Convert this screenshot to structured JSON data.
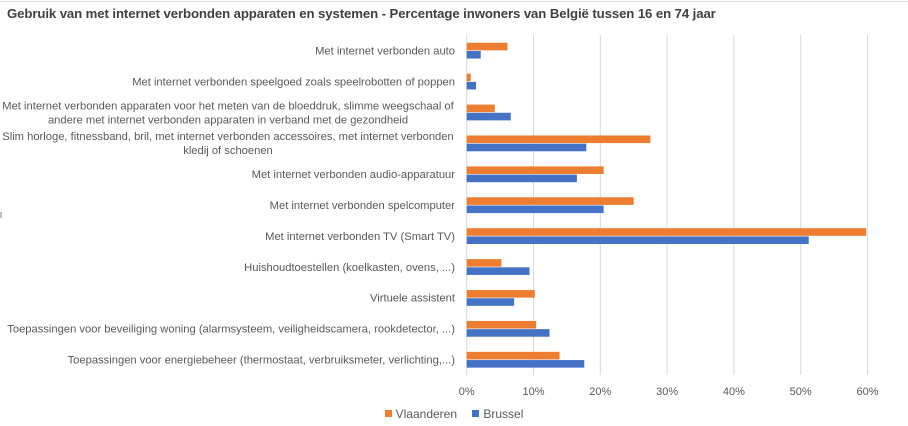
{
  "chart_data": {
    "type": "bar",
    "orientation": "horizontal",
    "title": "Gebruik van met internet verbonden apparaten en systemen - Percentage inwoners van België tussen 16 en 74 jaar",
    "xlabel": "",
    "ylabel": "",
    "xlim": [
      0,
      60
    ],
    "x_ticks": [
      "0%",
      "10%",
      "20%",
      "30%",
      "40%",
      "50%",
      "60%"
    ],
    "x_tick_values": [
      0,
      10,
      20,
      30,
      40,
      50,
      60
    ],
    "grid": "vertical",
    "legend_position": "bottom",
    "categories": [
      [
        "Met internet verbonden auto"
      ],
      [
        "Met internet verbonden speelgoed zoals speelrobotten of poppen"
      ],
      [
        "Met internet verbonden apparaten voor het meten van de bloeddruk, slimme weegschaal of",
        "andere met internet verbonden apparaten in verband met de gezondheid"
      ],
      [
        "Slim horloge, fitnessband, bril, met internet verbonden accessoires, met internet verbonden",
        "kledij of schoenen"
      ],
      [
        "Met internet verbonden audio-apparatuur"
      ],
      [
        "Met internet verbonden spelcomputer"
      ],
      [
        "Met internet verbonden TV (Smart TV)"
      ],
      [
        "Huishoudtoestellen (koelkasten, ovens, ...)"
      ],
      [
        "Virtuele assistent"
      ],
      [
        "Toepassingen voor beveiliging woning (alarmsysteem, veiligheidscamera, rookdetector, ...)"
      ],
      [
        "Toepassingen voor energiebeheer (thermostaat, verbruiksmeter, verlichting,...)"
      ]
    ],
    "series": [
      {
        "name": "Vlaanderen",
        "color": "#ED7D31",
        "values": [
          6.1,
          0.6,
          4.2,
          27.5,
          20.5,
          25.0,
          59.8,
          5.2,
          10.2,
          10.4,
          13.9
        ]
      },
      {
        "name": "Brussel",
        "color": "#4472C4",
        "values": [
          2.1,
          1.4,
          6.6,
          17.9,
          16.5,
          20.5,
          51.2,
          9.4,
          7.1,
          12.4,
          17.6
        ]
      }
    ]
  },
  "legend": {
    "items": [
      {
        "label": "Vlaanderen",
        "color": "#ED7D31"
      },
      {
        "label": "Brussel",
        "color": "#4472C4"
      }
    ]
  },
  "colors": {
    "gridline": "#d9d9d9",
    "text": "#595959"
  }
}
